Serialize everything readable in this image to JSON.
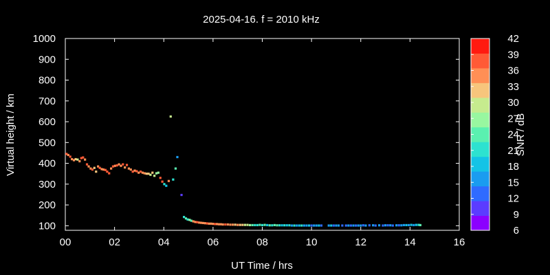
{
  "chart_data": {
    "type": "scatter",
    "title": "2025-04-16. f = 2010 kHz",
    "xlabel": "UT Time / hrs",
    "ylabel": "Virtual height / km",
    "xlim": [
      0,
      16
    ],
    "ylim": [
      78,
      1000
    ],
    "x_ticks": [
      0,
      2,
      4,
      6,
      8,
      10,
      12,
      14,
      16
    ],
    "x_tick_labels": [
      "00",
      "02",
      "04",
      "06",
      "08",
      "10",
      "12",
      "14",
      "16"
    ],
    "y_ticks": [
      100,
      200,
      300,
      400,
      500,
      600,
      700,
      800,
      900,
      1000
    ],
    "colorbar": {
      "label": "SNR / dB",
      "min": 6,
      "max": 42,
      "step": 3,
      "tick_labels": [
        "42",
        "39",
        "36",
        "33",
        "30",
        "27",
        "24",
        "21",
        "18",
        "15",
        "12",
        "9",
        "6"
      ],
      "colors": [
        "#8b00ff",
        "#5b3cff",
        "#2f6bff",
        "#1a9cf0",
        "#14c3e6",
        "#2de2d0",
        "#5af0b0",
        "#98f7a0",
        "#c6eb8e",
        "#f7c57c",
        "#ff8f55",
        "#ff5a36",
        "#ff1a10"
      ]
    },
    "grid": false,
    "series": [
      {
        "points": [
          [
            0.05,
            445,
            39
          ],
          [
            0.12,
            440,
            38
          ],
          [
            0.2,
            432,
            40
          ],
          [
            0.27,
            420,
            36
          ],
          [
            0.35,
            415,
            37
          ],
          [
            0.42,
            420,
            34
          ],
          [
            0.5,
            418,
            30
          ],
          [
            0.58,
            410,
            36
          ],
          [
            0.65,
            425,
            40
          ],
          [
            0.72,
            428,
            41
          ],
          [
            0.8,
            418,
            38
          ],
          [
            0.88,
            395,
            39
          ],
          [
            0.95,
            385,
            38
          ],
          [
            1.03,
            375,
            36
          ],
          [
            1.1,
            370,
            40
          ],
          [
            1.18,
            378,
            35
          ],
          [
            1.25,
            360,
            34
          ],
          [
            1.33,
            385,
            38
          ],
          [
            1.4,
            378,
            39
          ],
          [
            1.48,
            372,
            38
          ],
          [
            1.55,
            370,
            36
          ],
          [
            1.63,
            368,
            40
          ],
          [
            1.7,
            360,
            39
          ],
          [
            1.78,
            352,
            40
          ],
          [
            1.86,
            375,
            38
          ],
          [
            1.94,
            385,
            39
          ],
          [
            2.02,
            388,
            37
          ],
          [
            2.1,
            390,
            40
          ],
          [
            2.18,
            395,
            36
          ],
          [
            2.26,
            388,
            38
          ],
          [
            2.34,
            395,
            40
          ],
          [
            2.42,
            380,
            37
          ],
          [
            2.5,
            392,
            39
          ],
          [
            2.58,
            375,
            38
          ],
          [
            2.66,
            370,
            36
          ],
          [
            2.74,
            360,
            40
          ],
          [
            2.82,
            365,
            37
          ],
          [
            2.9,
            362,
            39
          ],
          [
            2.98,
            355,
            38
          ],
          [
            3.06,
            360,
            40
          ],
          [
            3.14,
            355,
            36
          ],
          [
            3.22,
            352,
            37
          ],
          [
            3.3,
            350,
            33
          ],
          [
            3.38,
            350,
            34
          ],
          [
            3.46,
            345,
            31
          ],
          [
            3.54,
            355,
            34
          ],
          [
            3.62,
            340,
            32
          ],
          [
            3.7,
            352,
            28
          ],
          [
            3.78,
            355,
            27
          ],
          [
            3.86,
            330,
            40
          ],
          [
            3.94,
            312,
            39
          ],
          [
            4.02,
            300,
            22
          ],
          [
            4.1,
            292,
            19
          ],
          [
            4.2,
            315,
            36
          ],
          [
            4.28,
            625,
            31
          ],
          [
            4.38,
            322,
            21
          ],
          [
            4.48,
            375,
            26
          ],
          [
            4.55,
            430,
            16
          ],
          [
            4.72,
            248,
            10
          ],
          [
            4.82,
            142,
            23
          ],
          [
            4.9,
            135,
            26
          ],
          [
            4.97,
            130,
            22
          ],
          [
            5.05,
            128,
            27
          ],
          [
            5.12,
            124,
            26
          ],
          [
            5.2,
            121,
            38
          ],
          [
            5.28,
            118,
            36
          ],
          [
            5.36,
            117,
            39
          ],
          [
            5.44,
            115,
            37
          ],
          [
            5.52,
            114,
            36
          ],
          [
            5.6,
            113,
            38
          ],
          [
            5.68,
            112,
            37
          ],
          [
            5.76,
            111,
            39
          ],
          [
            5.84,
            110,
            38
          ],
          [
            5.92,
            110,
            36
          ],
          [
            6.0,
            109,
            37
          ],
          [
            6.08,
            108,
            39
          ],
          [
            6.16,
            108,
            38
          ],
          [
            6.24,
            107,
            36
          ],
          [
            6.32,
            107,
            38
          ],
          [
            6.4,
            106,
            37
          ],
          [
            6.5,
            106,
            39
          ],
          [
            6.6,
            106,
            36
          ],
          [
            6.7,
            105,
            37
          ],
          [
            6.8,
            105,
            38
          ],
          [
            6.9,
            105,
            34
          ],
          [
            7.0,
            104,
            36
          ],
          [
            7.1,
            104,
            35
          ],
          [
            7.2,
            104,
            33
          ],
          [
            7.3,
            104,
            32
          ],
          [
            7.4,
            104,
            30
          ],
          [
            7.5,
            103,
            28
          ],
          [
            7.6,
            103,
            25
          ],
          [
            7.7,
            103,
            21
          ],
          [
            7.8,
            103,
            23
          ],
          [
            7.9,
            104,
            26
          ],
          [
            8.0,
            103,
            22
          ],
          [
            8.1,
            104,
            24
          ],
          [
            8.2,
            103,
            20
          ],
          [
            8.3,
            102,
            25
          ],
          [
            8.4,
            102,
            22
          ],
          [
            8.5,
            103,
            26
          ],
          [
            8.6,
            102,
            24
          ],
          [
            8.7,
            102,
            21
          ],
          [
            8.8,
            102,
            19
          ],
          [
            8.9,
            102,
            22
          ],
          [
            9.0,
            102,
            18
          ],
          [
            9.1,
            102,
            23
          ],
          [
            9.2,
            101,
            17
          ],
          [
            9.3,
            101,
            21
          ],
          [
            9.4,
            101,
            16
          ],
          [
            9.5,
            101,
            19
          ],
          [
            9.6,
            101,
            22
          ],
          [
            9.7,
            101,
            17
          ],
          [
            9.8,
            101,
            15
          ],
          [
            9.9,
            101,
            18
          ],
          [
            10.0,
            101,
            14
          ],
          [
            10.1,
            101,
            17
          ],
          [
            10.2,
            101,
            15
          ],
          [
            10.3,
            101,
            18
          ],
          [
            10.4,
            101,
            14
          ],
          [
            10.7,
            101,
            15
          ],
          [
            10.8,
            101,
            18
          ],
          [
            10.9,
            101,
            14
          ],
          [
            11.0,
            101,
            16
          ],
          [
            11.1,
            101,
            15
          ],
          [
            11.25,
            101,
            12
          ],
          [
            11.4,
            101,
            14
          ],
          [
            11.5,
            101,
            16
          ],
          [
            11.6,
            101,
            13
          ],
          [
            11.7,
            101,
            15
          ],
          [
            11.8,
            101,
            14
          ],
          [
            11.9,
            101,
            17
          ],
          [
            12.0,
            101,
            15
          ],
          [
            12.1,
            102,
            13
          ],
          [
            12.2,
            101,
            16
          ],
          [
            12.35,
            102,
            14
          ],
          [
            12.5,
            102,
            17
          ],
          [
            12.6,
            101,
            12
          ],
          [
            12.75,
            102,
            15
          ],
          [
            12.9,
            101,
            14
          ],
          [
            13.0,
            102,
            16
          ],
          [
            13.1,
            102,
            13
          ],
          [
            13.2,
            102,
            17
          ],
          [
            13.3,
            101,
            14
          ],
          [
            13.45,
            102,
            16
          ],
          [
            13.55,
            102,
            13
          ],
          [
            13.65,
            102,
            17
          ],
          [
            13.75,
            103,
            15
          ],
          [
            13.85,
            103,
            18
          ],
          [
            13.95,
            103,
            16
          ],
          [
            14.05,
            104,
            19
          ],
          [
            14.15,
            103,
            17
          ],
          [
            14.25,
            104,
            20
          ],
          [
            14.35,
            104,
            22
          ],
          [
            14.42,
            103,
            24
          ]
        ]
      }
    ]
  }
}
